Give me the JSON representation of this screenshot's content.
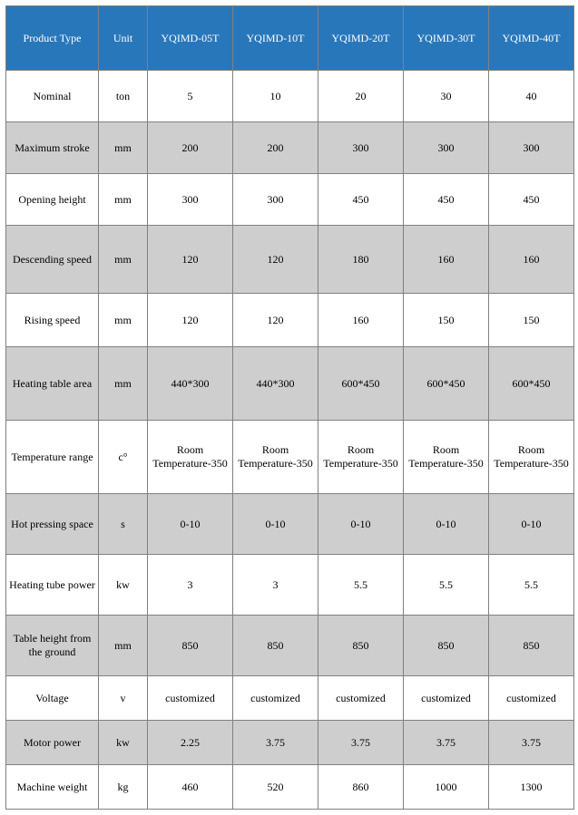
{
  "table": {
    "header_bg": "#2977bb",
    "header_fg": "#ffffff",
    "alt_row_bg": "#cecece",
    "base_row_bg": "#ffffff",
    "border_color": "#808080",
    "font_family": "Times New Roman",
    "header_fontsize": 12,
    "body_fontsize": 12,
    "columns": [
      "Product Type",
      "Unit",
      "YQIMD-05T",
      "YQIMD-10T",
      "YQIMD-20T",
      "YQIMD-30T",
      "YQIMD-40T"
    ],
    "rows": [
      {
        "height": 48,
        "alt": false,
        "cells": [
          "Nominal",
          "ton",
          "5",
          "10",
          "20",
          "30",
          "40"
        ]
      },
      {
        "height": 48,
        "alt": true,
        "cells": [
          "Maximum stroke",
          "mm",
          "200",
          "200",
          "300",
          "300",
          "300"
        ]
      },
      {
        "height": 48,
        "alt": false,
        "cells": [
          "Opening height",
          "mm",
          "300",
          "300",
          "450",
          "450",
          "450"
        ]
      },
      {
        "height": 66,
        "alt": true,
        "cells": [
          "Descending speed",
          "mm",
          "120",
          "120",
          "180",
          "160",
          "160"
        ]
      },
      {
        "height": 50,
        "alt": false,
        "cells": [
          "Rising speed",
          "mm",
          "120",
          "120",
          "160",
          "150",
          "150"
        ]
      },
      {
        "height": 72,
        "alt": true,
        "cells": [
          "Heating table area",
          "mm",
          "440*300",
          "440*300",
          "600*450",
          "600*450",
          "600*450"
        ]
      },
      {
        "height": 72,
        "alt": false,
        "cells": [
          "Temperature range",
          "c°",
          "Room Temperature-350",
          "Room Temperature-350",
          "Room Temperature-350",
          "Room Temperature-350",
          "Room Temperature-350"
        ]
      },
      {
        "height": 58,
        "alt": true,
        "cells": [
          "Hot pressing space",
          "s",
          "0-10",
          "0-10",
          "0-10",
          "0-10",
          "0-10"
        ]
      },
      {
        "height": 58,
        "alt": false,
        "cells": [
          "Heating tube power",
          "kw",
          "3",
          "3",
          "5.5",
          "5.5",
          "5.5"
        ]
      },
      {
        "height": 58,
        "alt": true,
        "cells": [
          "Table height from the ground",
          "mm",
          "850",
          "850",
          "850",
          "850",
          "850"
        ]
      },
      {
        "height": 40,
        "alt": false,
        "cells": [
          "Voltage",
          "v",
          "customized",
          "customized",
          "customized",
          "customized",
          "customized"
        ]
      },
      {
        "height": 40,
        "alt": true,
        "cells": [
          "Motor power",
          "kw",
          "2.25",
          "3.75",
          "3.75",
          "3.75",
          "3.75"
        ]
      },
      {
        "height": 40,
        "alt": false,
        "cells": [
          "Machine weight",
          "kg",
          "460",
          "520",
          "860",
          "1000",
          "1300"
        ]
      }
    ]
  }
}
